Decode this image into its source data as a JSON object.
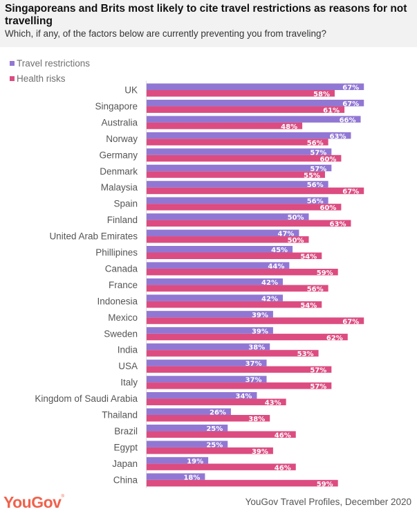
{
  "header": {
    "title": "Singaporeans and Brits most likely to cite travel restrictions as reasons for not travelling",
    "subtitle": "Which, if any, of the factors below are currently preventing you from traveling?"
  },
  "footer": {
    "logo": "YouGov",
    "source": "YouGov Travel Profiles, December 2020"
  },
  "colors": {
    "travel_restrictions": "#9177d4",
    "health_risks": "#dc4c80"
  },
  "chart_data": {
    "type": "bar",
    "orientation": "horizontal",
    "title": "Singaporeans and Brits most likely to cite travel restrictions as reasons for not travelling",
    "subtitle": "Which, if any, of the factors below are currently preventing you from traveling?",
    "xlabel": "",
    "ylabel": "",
    "xlim": [
      0,
      67
    ],
    "grid": false,
    "legend_position": "top-left",
    "value_suffix": "%",
    "categories": [
      "UK",
      "Singapore",
      "Australia",
      "Norway",
      "Germany",
      "Denmark",
      "Malaysia",
      "Spain",
      "Finland",
      "United Arab Emirates",
      "Phillipines",
      "Canada",
      "France",
      "Indonesia",
      "Mexico",
      "Sweden",
      "India",
      "USA",
      "Italy",
      "Kingdom of Saudi Arabia",
      "Thailand",
      "Brazil",
      "Egypt",
      "Japan",
      "China"
    ],
    "series": [
      {
        "name": "Travel restrictions",
        "values": [
          67,
          67,
          66,
          63,
          57,
          57,
          56,
          56,
          50,
          47,
          45,
          44,
          42,
          42,
          39,
          39,
          38,
          37,
          37,
          34,
          26,
          25,
          25,
          19,
          18
        ]
      },
      {
        "name": "Health risks",
        "values": [
          58,
          61,
          48,
          56,
          60,
          55,
          67,
          60,
          63,
          50,
          54,
          59,
          56,
          54,
          67,
          62,
          53,
          57,
          57,
          43,
          38,
          46,
          39,
          46,
          59
        ]
      }
    ]
  }
}
